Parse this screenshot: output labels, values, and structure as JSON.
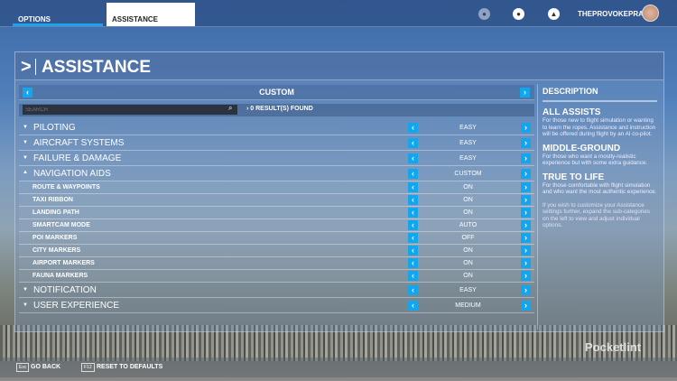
{
  "topbar": {
    "tabs": [
      {
        "label": "OPTIONS"
      },
      {
        "label": "ASSISTANCE"
      }
    ],
    "username": "THEPROVOKEPRAWN",
    "icons": [
      "friends-icon",
      "profile-icon",
      "notification-bell-icon"
    ]
  },
  "page": {
    "title": "ASSISTANCE"
  },
  "preset": {
    "label": "CUSTOM"
  },
  "search": {
    "placeholder": "SEARCH",
    "results": "0 RESULT(S) FOUND"
  },
  "rows": [
    {
      "name": "PILOTING",
      "value": "EASY",
      "type": "main",
      "expanded": false
    },
    {
      "name": "AIRCRAFT SYSTEMS",
      "value": "EASY",
      "type": "main",
      "expanded": false
    },
    {
      "name": "FAILURE & DAMAGE",
      "value": "EASY",
      "type": "main",
      "expanded": false
    },
    {
      "name": "NAVIGATION AIDS",
      "value": "CUSTOM",
      "type": "main",
      "expanded": true
    },
    {
      "name": "ROUTE & WAYPOINTS",
      "value": "ON",
      "type": "sub"
    },
    {
      "name": "TAXI RIBBON",
      "value": "ON",
      "type": "sub"
    },
    {
      "name": "LANDING PATH",
      "value": "ON",
      "type": "sub"
    },
    {
      "name": "SMARTCAM MODE",
      "value": "AUTO",
      "type": "sub"
    },
    {
      "name": "POI MARKERS",
      "value": "OFF",
      "type": "sub"
    },
    {
      "name": "CITY MARKERS",
      "value": "ON",
      "type": "sub"
    },
    {
      "name": "AIRPORT MARKERS",
      "value": "ON",
      "type": "sub"
    },
    {
      "name": "FAUNA MARKERS",
      "value": "ON",
      "type": "sub"
    },
    {
      "name": "NOTIFICATION",
      "value": "EASY",
      "type": "main",
      "expanded": false
    },
    {
      "name": "USER EXPERIENCE",
      "value": "MEDIUM",
      "type": "main",
      "expanded": false
    }
  ],
  "description": {
    "heading": "DESCRIPTION",
    "sections": [
      {
        "title": "ALL ASSISTS",
        "text": "For those new to flight simulation or wanting to learn the ropes. Assistance and instruction will be offered during flight by an AI co-pilot."
      },
      {
        "title": "MIDDLE-GROUND",
        "text": "For those who want a mostly-realistic experience but with some extra guidance."
      },
      {
        "title": "TRUE TO LIFE",
        "text": "For those comfortable with flight simulation and who want the most authentic experience."
      }
    ],
    "footer": "If you wish to customize your Assistance settings further, expand the sub-categories on the left to view and adjust individual options."
  },
  "bottom": {
    "go_back_key": "Esc",
    "go_back": "GO BACK",
    "reset_key": "F12",
    "reset": "RESET TO DEFAULTS"
  },
  "watermark": "Pocketlint",
  "colors": {
    "accent": "#12a6ef"
  }
}
